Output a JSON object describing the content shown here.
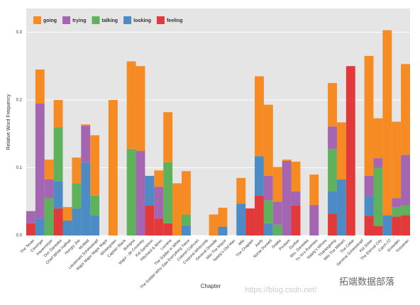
{
  "chart_data": {
    "type": "bar",
    "stacked": true,
    "y_label": "Relative Word Frequency",
    "x_label": "Chapter",
    "watermark": [
      "https://blog.csdn.net/",
      "拓端数据部落"
    ],
    "categories": [
      "The Texan",
      "Clevinger",
      "Havermeyer",
      "Doc Daneeka",
      "Chief White Halfoat",
      "Hungry Joe",
      "McWatt",
      "Lieutenant Scheisskopf",
      "Major Major Major Major",
      "Wintergreen",
      "Captain Black",
      "Bologna",
      "Major - de Coverley",
      "Kid Sampson",
      "Piltchard & Wren",
      "Luciana",
      "The Soldier in White",
      "The Soldier Who Saw Everything Twice",
      "Colonel Cathcart",
      "Corporal Whitcomb",
      "General Dreedle",
      "Milo The Mayor",
      "Nately's Old Man",
      "Milo",
      "The Chaplain",
      "Aarfy",
      "Nurse Duckett",
      "Dobbs",
      "Peckem",
      "Dunbar",
      "Mrs. Daneeka",
      "Yo-Yo's Roomies",
      "Nately's Whore",
      "Thanksgiving",
      "Milo The Militant",
      "The Cellar",
      "General Scheisskopf",
      "Kid Sister",
      "The Eternal City",
      "Catch-22",
      "Snowden",
      "Yossarian"
    ],
    "series": [
      {
        "name": "going",
        "color": "#f68b24",
        "values": [
          0,
          0.05,
          0.029,
          0.04,
          0.02,
          0.038,
          0.002,
          0.089,
          0,
          0.2,
          0,
          0.129,
          0.125,
          0,
          0.024,
          0.074,
          0.077,
          0.064,
          0,
          0,
          0.031,
          0.028,
          0,
          0.038,
          0,
          0.118,
          0.105,
          0.051,
          0.002,
          0.044,
          0,
          0.045,
          0,
          0.064,
          0.084,
          0,
          0,
          0.177,
          0.059,
          0.273,
          0.113,
          0.134
        ]
      },
      {
        "name": "trying",
        "color": "#a466b0",
        "values": [
          0.018,
          0.17,
          0.028,
          0,
          0,
          0,
          0.054,
          0,
          0,
          0,
          0,
          0,
          0.125,
          0,
          0.047,
          0,
          0,
          0,
          0,
          0,
          0,
          0,
          0,
          0,
          0,
          0,
          0.036,
          0.034,
          0.11,
          0.021,
          0,
          0.045,
          0,
          0.033,
          0,
          0,
          0,
          0.03,
          0.014,
          0,
          0.013,
          0.074
        ]
      },
      {
        "name": "talking",
        "color": "#5fb15c",
        "values": [
          0,
          0,
          0.055,
          0.08,
          0,
          0.037,
          0,
          0.029,
          0,
          0,
          0,
          0.128,
          0,
          0,
          0,
          0.09,
          0,
          0.016,
          0,
          0,
          0,
          0,
          0,
          0,
          0,
          0,
          0.034,
          0.016,
          0,
          0,
          0,
          0,
          0,
          0.063,
          0,
          0,
          0,
          0,
          0.086,
          0,
          0.014,
          0.015
        ]
      },
      {
        "name": "looking",
        "color": "#4c8bc4",
        "values": [
          0,
          0.025,
          0,
          0.04,
          0.022,
          0.04,
          0.108,
          0.03,
          0,
          0,
          0,
          0,
          0,
          0.044,
          0,
          0,
          0,
          0.015,
          0,
          0,
          0,
          0.013,
          0,
          0.047,
          0,
          0.058,
          0.018,
          0,
          0,
          0,
          0,
          0,
          0,
          0.033,
          0.083,
          0,
          0,
          0.029,
          0,
          0.03,
          0,
          0
        ]
      },
      {
        "name": "feeling",
        "color": "#e2393b",
        "values": [
          0.018,
          0,
          0,
          0.04,
          0,
          0,
          0,
          0,
          0,
          0,
          0,
          0,
          0,
          0.044,
          0.025,
          0.018,
          0,
          0,
          0,
          0,
          0,
          0,
          0,
          0,
          0.04,
          0.059,
          0,
          0,
          0,
          0.044,
          0,
          0,
          0,
          0.032,
          0,
          0.25,
          0,
          0.029,
          0.014,
          0,
          0.028,
          0.03
        ]
      }
    ],
    "ylim": [
      0,
      0.335
    ],
    "yticks": [
      {
        "value": 0,
        "label": "0.0"
      },
      0.1,
      0.2,
      0.3
    ],
    "grid": true,
    "legend": "top-left"
  }
}
